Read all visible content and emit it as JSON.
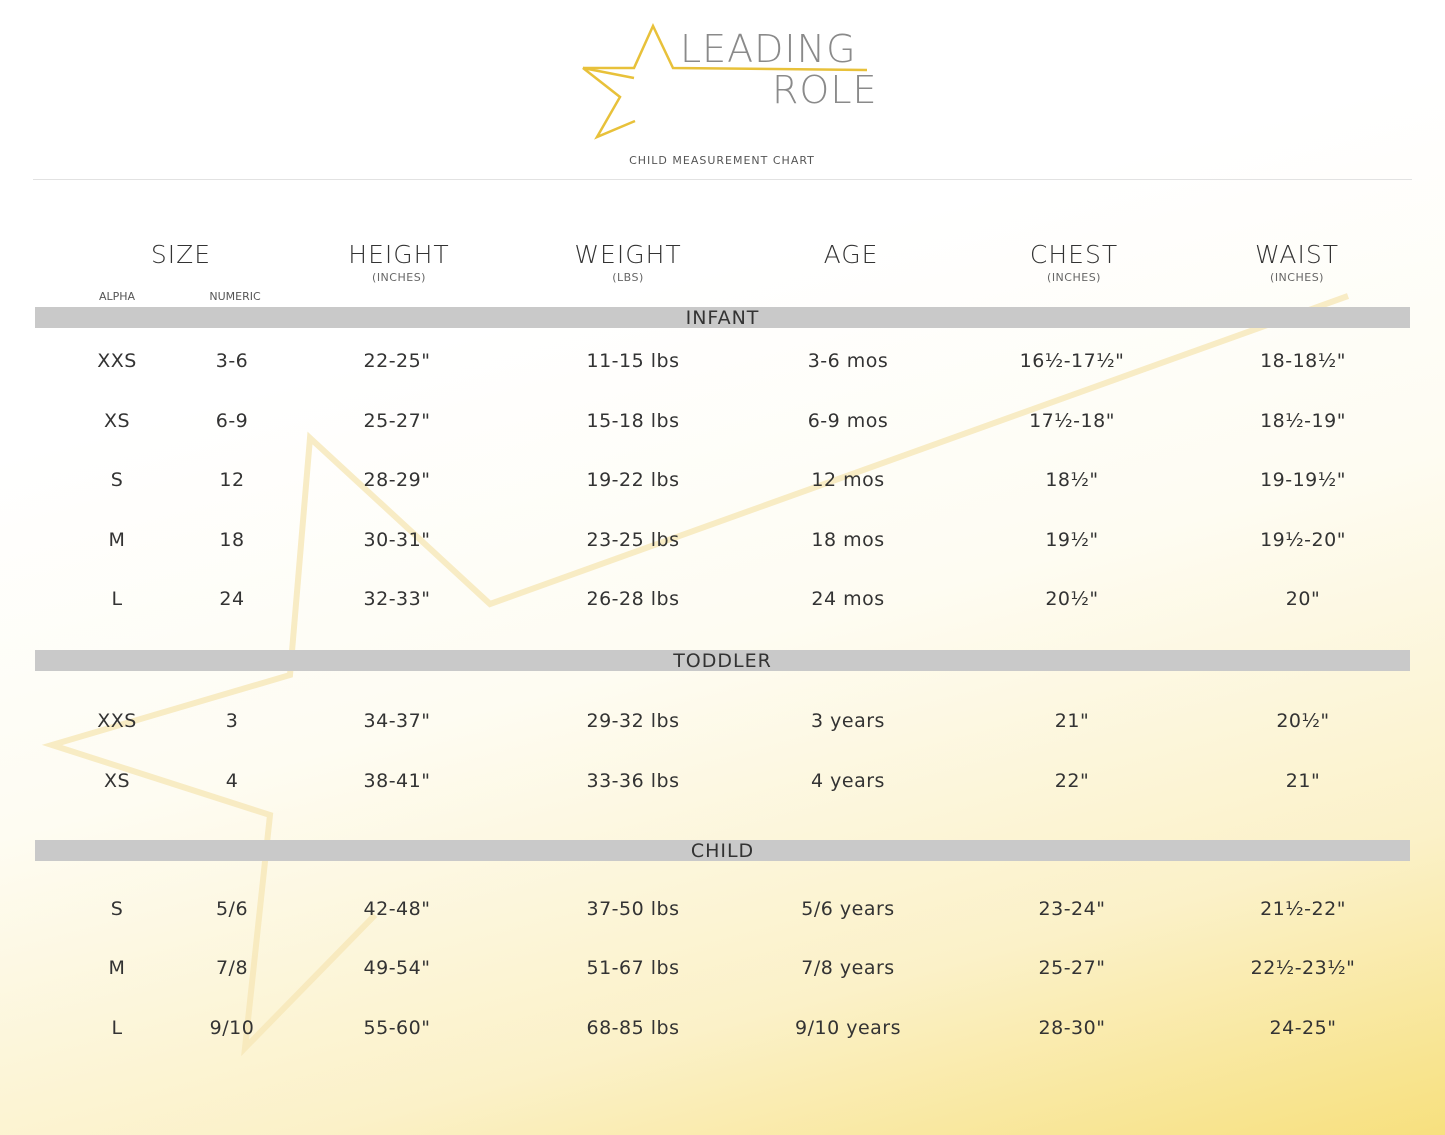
{
  "brand": {
    "line1": "LEADING",
    "line2": "ROLE",
    "subtitle": "CHILD MEASUREMENT CHART"
  },
  "colors": {
    "gold": "#e8c13a",
    "band": "#c9c9c9",
    "star_bg": "#f5e6b0"
  },
  "headers": {
    "size": "SIZE",
    "alpha": "ALPHA",
    "numeric": "NUMERIC",
    "height": "HEIGHT",
    "height_unit": "(INCHES)",
    "weight": "WEIGHT",
    "weight_unit": "(LBS)",
    "age": "AGE",
    "chest": "CHEST",
    "chest_unit": "(INCHES)",
    "waist": "WAIST",
    "waist_unit": "(INCHES)"
  },
  "sections": [
    {
      "name": "INFANT",
      "rows": [
        [
          "XXS",
          "3-6",
          "22-25\"",
          "11-15 lbs",
          "3-6 mos",
          "16½-17½\"",
          "18-18½\""
        ],
        [
          "XS",
          "6-9",
          "25-27\"",
          "15-18 lbs",
          "6-9 mos",
          "17½-18\"",
          "18½-19\""
        ],
        [
          "S",
          "12",
          "28-29\"",
          "19-22 lbs",
          "12 mos",
          "18½\"",
          "19-19½\""
        ],
        [
          "M",
          "18",
          "30-31\"",
          "23-25 lbs",
          "18 mos",
          "19½\"",
          "19½-20\""
        ],
        [
          "L",
          "24",
          "32-33\"",
          "26-28 lbs",
          "24 mos",
          "20½\"",
          "20\""
        ]
      ]
    },
    {
      "name": "TODDLER",
      "rows": [
        [
          "XXS",
          "3",
          "34-37\"",
          "29-32 lbs",
          "3 years",
          "21\"",
          "20½\""
        ],
        [
          "XS",
          "4",
          "38-41\"",
          "33-36 lbs",
          "4 years",
          "22\"",
          "21\""
        ]
      ]
    },
    {
      "name": "CHILD",
      "rows": [
        [
          "S",
          "5/6",
          "42-48\"",
          "37-50 lbs",
          "5/6 years",
          "23-24\"",
          "21½-22\""
        ],
        [
          "M",
          "7/8",
          "49-54\"",
          "51-67 lbs",
          "7/8 years",
          "25-27\"",
          "22½-23½\""
        ],
        [
          "L",
          "9/10",
          "55-60\"",
          "68-85 lbs",
          "9/10 years",
          "28-30\"",
          "24-25\""
        ]
      ]
    }
  ]
}
